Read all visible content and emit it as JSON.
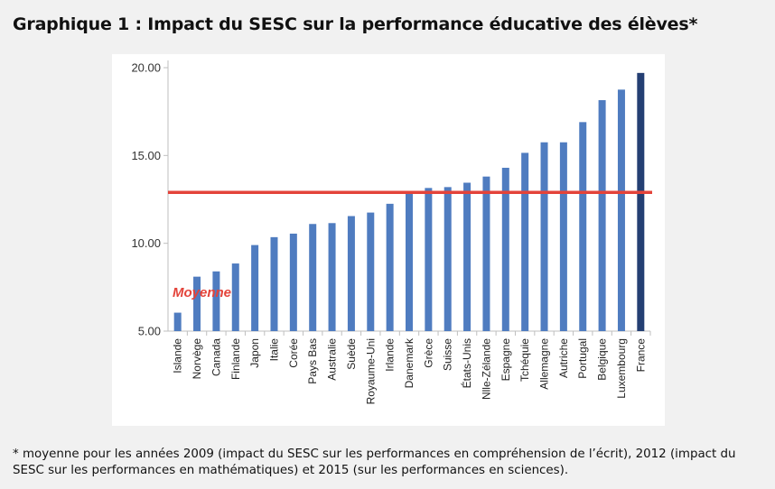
{
  "title": "Graphique 1 : Impact du SESC sur la performance éducative des élèves*",
  "footnote": "* moyenne pour les années 2009 (impact du SESC sur les performances en compréhension de l’écrit), 2012 (impact du SESC sur les performances en mathématiques) et 2015 (sur les performances en sciences).",
  "colors": {
    "bar": "#4f7cc0",
    "bar_highlight": "#243f73",
    "average_line": "#e3433a"
  },
  "chart_data": {
    "type": "bar",
    "categories": [
      "Islande",
      "Norvège",
      "Canada",
      "Finlande",
      "Japon",
      "Italie",
      "Corée",
      "Pays Bas",
      "Australie",
      "Suède",
      "Royaume-Uni",
      "Irlande",
      "Danemark",
      "Grèce",
      "Suisse",
      "États-Unis",
      "Nlle-Zélande",
      "Espagne",
      "Tchéquie",
      "Allemagne",
      "Autriche",
      "Portugal",
      "Belgique",
      "Luxembourg",
      "France"
    ],
    "values": [
      6.05,
      8.1,
      8.4,
      8.85,
      9.9,
      10.35,
      10.55,
      11.1,
      11.15,
      11.55,
      11.75,
      12.25,
      12.9,
      13.15,
      13.2,
      13.45,
      13.8,
      14.3,
      15.15,
      15.75,
      15.75,
      16.9,
      18.15,
      18.75,
      19.7
    ],
    "highlight": "France",
    "average": {
      "value": 12.9,
      "label": "Moyenne"
    },
    "yticks": [
      "5.00",
      "10.00",
      "15.00",
      "20.00"
    ],
    "ylim": [
      5,
      20
    ],
    "grid": false,
    "legend": "none"
  }
}
